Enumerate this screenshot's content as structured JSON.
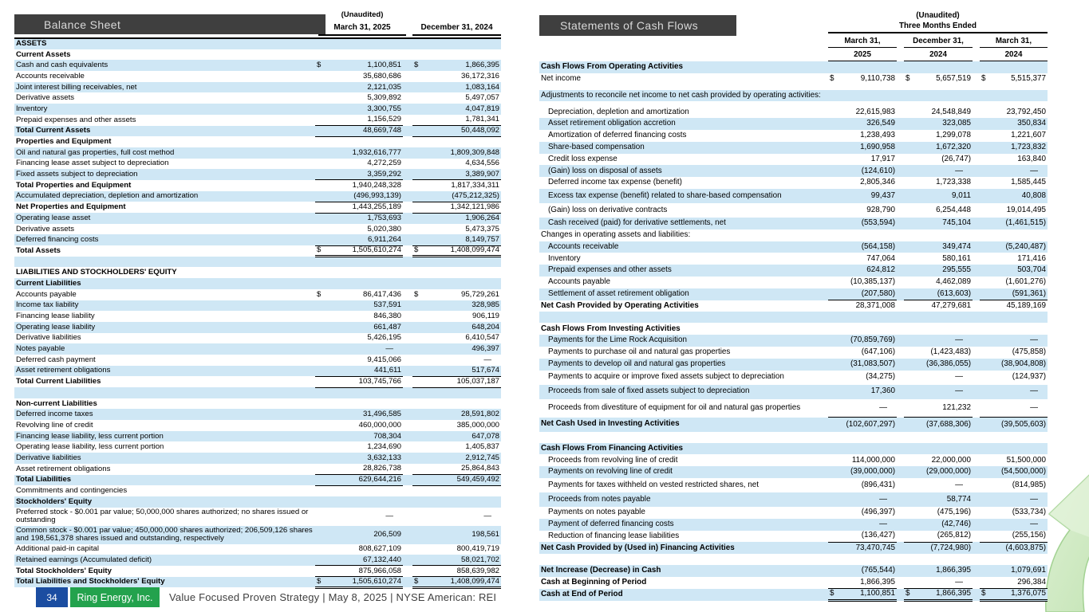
{
  "balance_sheet": {
    "title": "Balance Sheet",
    "unaudited_label": "(Unaudited)",
    "columns": [
      "March 31, 2025",
      "December 31, 2024"
    ],
    "rows": [
      {
        "l": "ASSETS",
        "f": "bz"
      },
      {
        "l": "Current Assets",
        "f": "b"
      },
      {
        "l": "Cash and cash equivalents",
        "v1": "1,100,851",
        "v2": "1,866,395",
        "f": "z$"
      },
      {
        "l": "Accounts receivable",
        "v1": "35,680,686",
        "v2": "36,172,316",
        "f": ""
      },
      {
        "l": "Joint interest billing receivables, net",
        "v1": "2,121,035",
        "v2": "1,083,164",
        "f": "z"
      },
      {
        "l": "Derivative assets",
        "v1": "5,309,892",
        "v2": "5,497,057",
        "f": ""
      },
      {
        "l": "Inventory",
        "v1": "3,300,755",
        "v2": "4,047,819",
        "f": "z"
      },
      {
        "l": "Prepaid expenses and other assets",
        "v1": "1,156,529",
        "v2": "1,781,341",
        "f": "u"
      },
      {
        "l": "Total Current Assets",
        "v1": "48,669,748",
        "v2": "50,448,092",
        "f": "bzu"
      },
      {
        "l": "Properties and Equipment",
        "f": "b"
      },
      {
        "l": "Oil and natural gas properties, full cost method",
        "v1": "1,932,616,777",
        "v2": "1,809,309,848",
        "f": "z"
      },
      {
        "l": "Financing lease asset subject to depreciation",
        "v1": "4,272,259",
        "v2": "4,634,556",
        "f": ""
      },
      {
        "l": "Fixed assets subject to depreciation",
        "v1": "3,359,292",
        "v2": "3,389,907",
        "f": "zu"
      },
      {
        "l": "Total Properties and Equipment",
        "v1": "1,940,248,328",
        "v2": "1,817,334,311",
        "f": "b"
      },
      {
        "l": "Accumulated depreciation, depletion and amortization",
        "v1": "(496,993,139)",
        "v2": "(475,212,325)",
        "f": "zu"
      },
      {
        "l": "Net Properties and Equipment",
        "v1": "1,443,255,189",
        "v2": "1,342,121,986",
        "f": "bu"
      },
      {
        "l": "Operating lease asset",
        "v1": "1,753,693",
        "v2": "1,906,264",
        "f": "z"
      },
      {
        "l": "Derivative assets",
        "v1": "5,020,380",
        "v2": "5,473,375",
        "f": ""
      },
      {
        "l": "Deferred financing costs",
        "v1": "6,911,264",
        "v2": "8,149,757",
        "f": "zu"
      },
      {
        "l": "Total Assets",
        "v1": "1,505,610,274",
        "v2": "1,408,099,474",
        "f": "b$d"
      },
      {
        "l": "",
        "f": "z"
      },
      {
        "l": "LIABILITIES AND STOCKHOLDERS' EQUITY",
        "f": "b"
      },
      {
        "l": "Current Liabilities",
        "f": "bz"
      },
      {
        "l": "Accounts payable",
        "v1": "86,417,436",
        "v2": "95,729,261",
        "f": "$"
      },
      {
        "l": "Income tax liability",
        "v1": "537,591",
        "v2": "328,985",
        "f": "z"
      },
      {
        "l": "Financing lease liability",
        "v1": "846,380",
        "v2": "906,119",
        "f": ""
      },
      {
        "l": "Operating lease liability",
        "v1": "661,487",
        "v2": "648,204",
        "f": "z"
      },
      {
        "l": "Derivative liabilities",
        "v1": "5,426,195",
        "v2": "6,410,547",
        "f": ""
      },
      {
        "l": "Notes payable",
        "v1": "—",
        "v2": "496,397",
        "f": "z"
      },
      {
        "l": "Deferred cash payment",
        "v1": "9,415,066",
        "v2": "—",
        "f": ""
      },
      {
        "l": "Asset retirement obligations",
        "v1": "441,611",
        "v2": "517,674",
        "f": "zu"
      },
      {
        "l": "Total Current Liabilities",
        "v1": "103,745,766",
        "v2": "105,037,187",
        "f": "bu"
      },
      {
        "l": "",
        "f": "z"
      },
      {
        "l": "Non-current Liabilities",
        "f": "b"
      },
      {
        "l": "Deferred income taxes",
        "v1": "31,496,585",
        "v2": "28,591,802",
        "f": "z"
      },
      {
        "l": "Revolving line of credit",
        "v1": "460,000,000",
        "v2": "385,000,000",
        "f": ""
      },
      {
        "l": "Financing lease liability, less current portion",
        "v1": "708,304",
        "v2": "647,078",
        "f": "z"
      },
      {
        "l": "Operating lease liability, less current portion",
        "v1": "1,234,690",
        "v2": "1,405,837",
        "f": ""
      },
      {
        "l": "Derivative liabilities",
        "v1": "3,632,133",
        "v2": "2,912,745",
        "f": "z"
      },
      {
        "l": "Asset retirement obligations",
        "v1": "28,826,738",
        "v2": "25,864,843",
        "f": "u"
      },
      {
        "l": "Total Liabilities",
        "v1": "629,644,216",
        "v2": "549,459,492",
        "f": "bzu"
      },
      {
        "l": "Commitments and contingencies",
        "f": ""
      },
      {
        "l": "Stockholders' Equity",
        "f": "bz"
      },
      {
        "l": "Preferred stock - $0.001 par value; 50,000,000 shares authorized; no shares issued or outstanding",
        "v1": "—",
        "v2": "—",
        "f": "w"
      },
      {
        "l": "Common stock - $0.001 par value; 450,000,000 shares authorized; 206,509,126 shares and 198,561,378 shares issued and outstanding, respectively",
        "v1": "206,509",
        "v2": "198,561",
        "f": "zw"
      },
      {
        "l": "Additional paid-in capital",
        "v1": "808,627,109",
        "v2": "800,419,719",
        "f": ""
      },
      {
        "l": "Retained earnings (Accumulated deficit)",
        "v1": "67,132,440",
        "v2": "58,021,702",
        "f": "zu"
      },
      {
        "l": "Total Stockholders' Equity",
        "v1": "875,966,058",
        "v2": "858,639,982",
        "f": "bu"
      },
      {
        "l": "Total Liabilities and Stockholders' Equity",
        "v1": "1,505,610,274",
        "v2": "1,408,099,474",
        "f": "bz$d"
      }
    ]
  },
  "cash_flows": {
    "title": "Statements of Cash Flows",
    "unaudited_label": "(Unaudited)",
    "period_label": "Three Months Ended",
    "column_months": [
      "March 31,",
      "December 31,",
      "March 31,"
    ],
    "column_years": [
      "2025",
      "2024",
      "2024"
    ],
    "rows": [
      {
        "l": "Cash Flows From Operating Activities",
        "f": "bz"
      },
      {
        "l": "Net income",
        "v1": "9,110,738",
        "v2": "5,657,519",
        "v3": "5,515,377",
        "f": "$"
      },
      {
        "l": "",
        "f": "g"
      },
      {
        "l": "Adjustments to reconcile net income to net cash provided by operating activities:",
        "f": "z"
      },
      {
        "l": "",
        "f": "g"
      },
      {
        "l": "Depreciation, depletion and amortization",
        "v1": "22,615,983",
        "v2": "24,548,849",
        "v3": "23,792,450",
        "f": "i"
      },
      {
        "l": "Asset retirement obligation accretion",
        "v1": "326,549",
        "v2": "323,085",
        "v3": "350,834",
        "f": "zi"
      },
      {
        "l": "Amortization of deferred financing costs",
        "v1": "1,238,493",
        "v2": "1,299,078",
        "v3": "1,221,607",
        "f": "i"
      },
      {
        "l": "Share-based compensation",
        "v1": "1,690,958",
        "v2": "1,672,320",
        "v3": "1,723,832",
        "f": "zi"
      },
      {
        "l": "Credit loss expense",
        "v1": "17,917",
        "v2": "(26,747)",
        "v3": "163,840",
        "f": "i"
      },
      {
        "l": "(Gain) loss on disposal of assets",
        "v1": "(124,610)",
        "v2": "—",
        "v3": "—",
        "f": "zi"
      },
      {
        "l": "Deferred income tax expense (benefit)",
        "v1": "2,805,346",
        "v2": "1,723,338",
        "v3": "1,585,445",
        "f": "i"
      },
      {
        "l": "Excess tax expense (benefit) related to share-based compensation",
        "v1": "99,437",
        "v2": "9,011",
        "v3": "40,808",
        "f": "zip"
      },
      {
        "l": "(Gain) loss on derivative contracts",
        "v1": "928,790",
        "v2": "6,254,448",
        "v3": "19,014,495",
        "f": "ip"
      },
      {
        "l": "Cash received (paid) for derivative settlements, net",
        "v1": "(553,594)",
        "v2": "745,104",
        "v3": "(1,461,515)",
        "f": "zi"
      },
      {
        "l": "Changes in operating assets and liabilities:",
        "f": ""
      },
      {
        "l": "Accounts receivable",
        "v1": "(564,158)",
        "v2": "349,474",
        "v3": "(5,240,487)",
        "f": "zi"
      },
      {
        "l": "Inventory",
        "v1": "747,064",
        "v2": "580,161",
        "v3": "171,416",
        "f": "i"
      },
      {
        "l": "Prepaid expenses and other assets",
        "v1": "624,812",
        "v2": "295,555",
        "v3": "503,704",
        "f": "zi"
      },
      {
        "l": "Accounts payable",
        "v1": "(10,385,137)",
        "v2": "4,462,089",
        "v3": "(1,601,276)",
        "f": "i"
      },
      {
        "l": "Settlement of asset retirement obligation",
        "v1": "(207,580)",
        "v2": "(613,603)",
        "v3": "(591,361)",
        "f": "ziu"
      },
      {
        "l": "Net Cash Provided by Operating Activities",
        "v1": "28,371,008",
        "v2": "47,279,681",
        "v3": "45,189,169",
        "f": "b"
      },
      {
        "l": "",
        "f": "Gz"
      },
      {
        "l": "Cash Flows From Investing Activities",
        "f": "b"
      },
      {
        "l": "Payments for the Lime Rock Acquisition",
        "v1": "(70,859,769)",
        "v2": "—",
        "v3": "—",
        "f": "zi"
      },
      {
        "l": "Payments to purchase oil and natural gas properties",
        "v1": "(647,106)",
        "v2": "(1,423,483)",
        "v3": "(475,858)",
        "f": "i"
      },
      {
        "l": "Payments to develop oil and natural gas properties",
        "v1": "(31,083,507)",
        "v2": "(36,386,055)",
        "v3": "(38,904,808)",
        "f": "zi"
      },
      {
        "l": "Payments to acquire or improve fixed assets subject to depreciation",
        "v1": "(34,275)",
        "v2": "—",
        "v3": "(124,937)",
        "f": "ip"
      },
      {
        "l": "Proceeds from sale of fixed assets subject to depreciation",
        "v1": "17,360",
        "v2": "—",
        "v3": "—",
        "f": "zip"
      },
      {
        "l": "Proceeds from divestiture of equipment for oil and natural gas properties",
        "v1": "—",
        "v2": "121,232",
        "v3": "—",
        "f": "iPu"
      },
      {
        "l": "Net Cash Used in Investing Activities",
        "v1": "(102,607,297)",
        "v2": "(37,688,306)",
        "v3": "(39,505,603)",
        "f": "bzp"
      },
      {
        "l": "",
        "f": "G"
      },
      {
        "l": "Cash Flows From Financing Activities",
        "f": "bz"
      },
      {
        "l": "Proceeds from revolving line of credit",
        "v1": "114,000,000",
        "v2": "22,000,000",
        "v3": "51,500,000",
        "f": "i"
      },
      {
        "l": "Payments on revolving line of credit",
        "v1": "(39,000,000)",
        "v2": "(29,000,000)",
        "v3": "(54,500,000)",
        "f": "zi"
      },
      {
        "l": "Payments for taxes withheld on vested restricted shares, net",
        "v1": "(896,431)",
        "v2": "—",
        "v3": "(814,985)",
        "f": "ip"
      },
      {
        "l": "Proceeds from notes payable",
        "v1": "—",
        "v2": "58,774",
        "v3": "—",
        "f": "zip"
      },
      {
        "l": "Payments on notes payable",
        "v1": "(496,397)",
        "v2": "(475,196)",
        "v3": "(533,734)",
        "f": "i"
      },
      {
        "l": "Payment of deferred financing costs",
        "v1": "—",
        "v2": "(42,746)",
        "v3": "—",
        "f": "zi"
      },
      {
        "l": "Reduction of financing lease liabilities",
        "v1": "(136,427)",
        "v2": "(265,812)",
        "v3": "(255,156)",
        "f": "iu"
      },
      {
        "l": "Net Cash Provided by (Used in) Financing Activities",
        "v1": "73,470,745",
        "v2": "(7,724,980)",
        "v3": "(4,603,875)",
        "f": "bz"
      },
      {
        "l": "",
        "f": "G"
      },
      {
        "l": "Net Increase (Decrease) in Cash",
        "v1": "(765,544)",
        "v2": "1,866,395",
        "v3": "1,079,691",
        "f": "bz"
      },
      {
        "l": "Cash at Beginning of Period",
        "v1": "1,866,395",
        "v2": "—",
        "v3": "296,384",
        "f": "bu"
      },
      {
        "l": "Cash at End of Period",
        "v1": "1,100,851",
        "v2": "1,866,395",
        "v3": "1,376,075",
        "f": "bz$d"
      }
    ]
  },
  "footer": {
    "page_number": "34",
    "company": "Ring Energy, Inc.",
    "tagline": "Value Focused Proven Strategy  | May 8, 2025 |  NYSE American: REI"
  },
  "colors": {
    "band": "#cfe7f5",
    "titlebar": "#3f3f3f",
    "page_box": "#1b4da1",
    "company_box": "#23a24d",
    "arrow_light": "#ddf1d3",
    "arrow_main": "#c3e3b4",
    "arrow_edge": "#a3d293"
  },
  "icons": {
    "growth_arrow": "growth-arrow-icon"
  }
}
